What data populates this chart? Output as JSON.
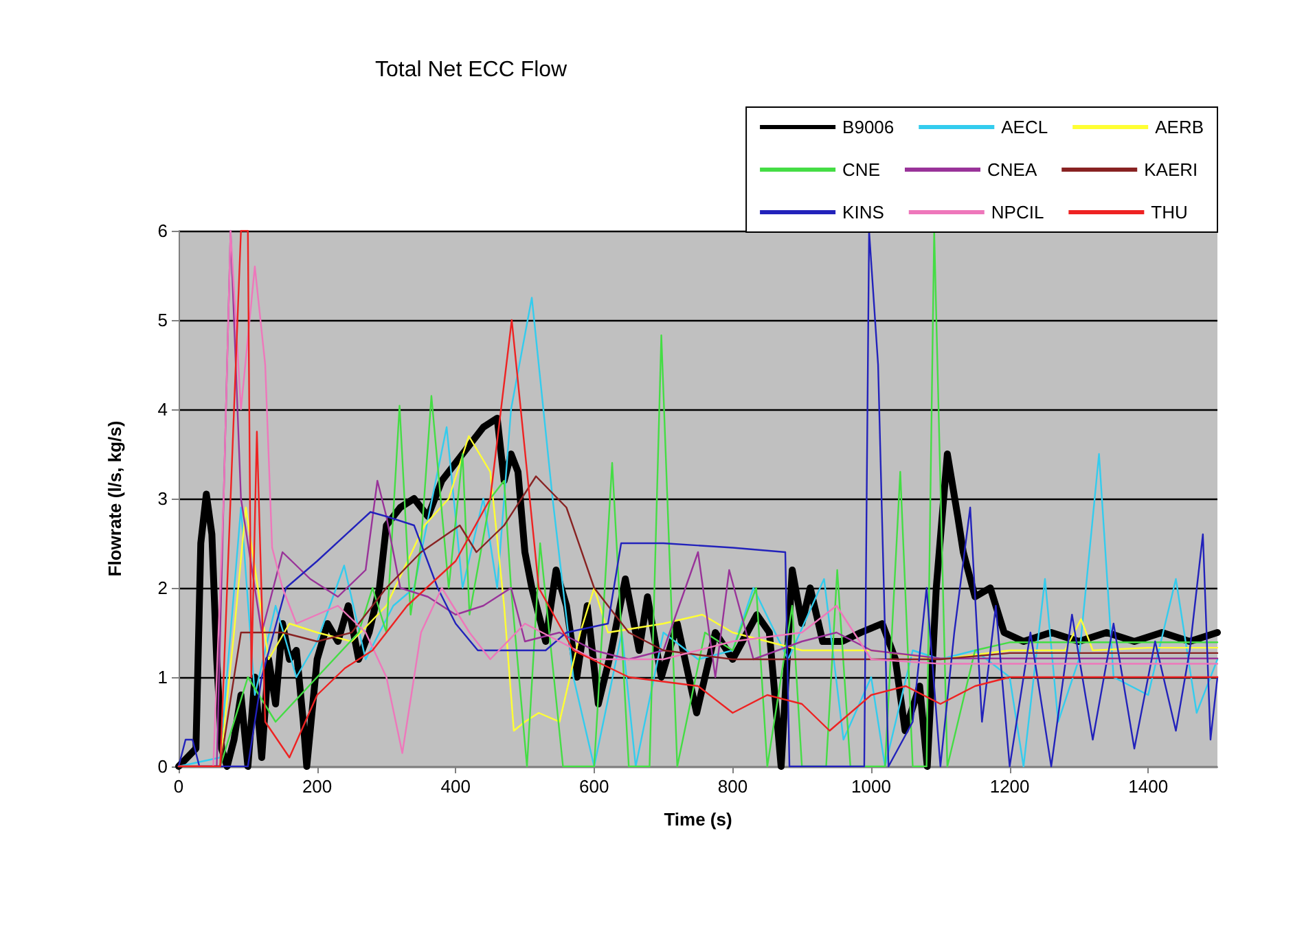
{
  "chart_data": {
    "type": "line",
    "title": "Total Net ECC Flow",
    "xlabel": "Time (s)",
    "ylabel": "Flowrate (l/s, kg/s)",
    "xlim": [
      0,
      1500
    ],
    "xticks": [
      0,
      200,
      400,
      600,
      800,
      1000,
      1200,
      1400
    ],
    "ylim": [
      0,
      6
    ],
    "yticks": [
      0,
      1,
      2,
      3,
      4,
      5,
      6
    ],
    "grid": "y",
    "legend": "top right",
    "marker": "none",
    "line_style": "solid",
    "series": [
      {
        "name": "B9006",
        "color": "#000000",
        "x": [
          0,
          25,
          32,
          40,
          48,
          55,
          62,
          70,
          80,
          90,
          100,
          110,
          120,
          130,
          140,
          150,
          160,
          170,
          180,
          185,
          200,
          215,
          230,
          245,
          260,
          275,
          290,
          300,
          320,
          340,
          360,
          380,
          400,
          420,
          440,
          460,
          470,
          480,
          490,
          500,
          510,
          530,
          545,
          560,
          575,
          590,
          606,
          625,
          645,
          665,
          677,
          697,
          720,
          748,
          775,
          800,
          814,
          835,
          853,
          870,
          886,
          900,
          912,
          930,
          958,
          985,
          1016,
          1035,
          1049,
          1070,
          1081,
          1094,
          1110,
          1125,
          1133,
          1150,
          1172,
          1192,
          1220,
          1260,
          1300,
          1340,
          1380,
          1420,
          1460,
          1500
        ],
        "values": [
          0,
          0.2,
          2.5,
          3.05,
          2.6,
          1.2,
          0.2,
          0,
          0.3,
          0.8,
          0,
          1.0,
          0.1,
          1.2,
          0.7,
          1.6,
          1.2,
          1.3,
          0.5,
          0,
          1.2,
          1.6,
          1.4,
          1.8,
          1.2,
          1.5,
          2.0,
          2.7,
          2.9,
          3.0,
          2.8,
          3.2,
          3.4,
          3.6,
          3.8,
          3.9,
          3.2,
          3.5,
          3.3,
          2.4,
          2.0,
          1.4,
          2.2,
          1.8,
          1.0,
          1.8,
          0.7,
          1.3,
          2.1,
          1.3,
          1.9,
          1.0,
          1.6,
          0.6,
          1.5,
          1.2,
          1.4,
          1.7,
          1.5,
          0,
          2.2,
          1.6,
          2.0,
          1.4,
          1.4,
          1.5,
          1.6,
          1.2,
          0.4,
          0.9,
          0,
          2.0,
          3.5,
          2.8,
          2.4,
          1.9,
          2.0,
          1.5,
          1.4,
          1.5,
          1.4,
          1.5,
          1.4,
          1.5,
          1.4,
          1.5
        ]
      },
      {
        "name": "AECL",
        "color": "#33ccee",
        "x": [
          0,
          60,
          75,
          90,
          110,
          140,
          170,
          200,
          239,
          270,
          310,
          340,
          387,
          410,
          440,
          460,
          480,
          510,
          540,
          570,
          600,
          640,
          660,
          700,
          750,
          800,
          830,
          880,
          932,
          960,
          1000,
          1020,
          1060,
          1100,
          1150,
          1200,
          1220,
          1251,
          1270,
          1300,
          1329,
          1350,
          1400,
          1440,
          1470,
          1500
        ],
        "values": [
          0,
          0.1,
          1.5,
          2.9,
          0.8,
          1.8,
          1.0,
          1.4,
          2.25,
          1.2,
          1.8,
          2.0,
          3.8,
          2.0,
          3.0,
          2.0,
          4.0,
          5.25,
          3.0,
          1.0,
          0,
          1.5,
          0,
          1.5,
          1.2,
          1.3,
          2.0,
          1.2,
          2.1,
          0.3,
          1.0,
          0,
          1.3,
          1.2,
          1.3,
          1.0,
          0,
          2.1,
          0.5,
          1.2,
          3.5,
          1.0,
          0.8,
          2.1,
          0.6,
          1.2
        ]
      },
      {
        "name": "AERB",
        "color": "#ffff33",
        "x": [
          0,
          60,
          80,
          97,
          130,
          160,
          200,
          250,
          300,
          355,
          390,
          419,
          450,
          470,
          484,
          500,
          520,
          550,
          580,
          600,
          620,
          700,
          756,
          800,
          900,
          1000,
          1100,
          1200,
          1280,
          1303,
          1320,
          1400,
          1500
        ],
        "values": [
          0,
          0,
          1.5,
          2.9,
          1.2,
          1.6,
          1.5,
          1.4,
          1.8,
          2.7,
          3.0,
          3.7,
          3.3,
          1.8,
          0.4,
          0.5,
          0.6,
          0.5,
          1.5,
          2.0,
          1.5,
          1.6,
          1.7,
          1.5,
          1.3,
          1.3,
          1.2,
          1.3,
          1.3,
          1.65,
          1.3,
          1.33,
          1.33
        ]
      },
      {
        "name": "CNE",
        "color": "#44dd44",
        "x": [
          0,
          60,
          100,
          140,
          200,
          260,
          280,
          300,
          319,
          335,
          350,
          365,
          390,
          410,
          420,
          450,
          470,
          480,
          503,
          522,
          555,
          600,
          626,
          650,
          680,
          697,
          720,
          760,
          800,
          834,
          850,
          870,
          886,
          900,
          935,
          951,
          970,
          1020,
          1042,
          1060,
          1080,
          1091,
          1110,
          1150,
          1200,
          1300,
          1400,
          1500
        ],
        "values": [
          0,
          0,
          1.0,
          0.5,
          1.0,
          1.5,
          2.0,
          1.5,
          4.04,
          1.7,
          2.5,
          4.15,
          2.0,
          3.5,
          1.7,
          3.0,
          3.2,
          2.0,
          0,
          2.5,
          0,
          0,
          3.4,
          0,
          0,
          4.83,
          0,
          1.5,
          1.3,
          2.0,
          0,
          1.0,
          1.8,
          0,
          0,
          2.2,
          0,
          0,
          3.3,
          0,
          0,
          6,
          0,
          1.3,
          1.39,
          1.39,
          1.39,
          1.39
        ]
      },
      {
        "name": "CNEA",
        "color": "#993399",
        "x": [
          0,
          55,
          65,
          75,
          90,
          120,
          150,
          190,
          230,
          270,
          287,
          300,
          320,
          360,
          400,
          440,
          480,
          500,
          550,
          600,
          650,
          700,
          750,
          775,
          795,
          830,
          900,
          950,
          1000,
          1100,
          1200,
          1300,
          1400,
          1500
        ],
        "values": [
          0,
          0,
          3.0,
          6,
          3.0,
          1.5,
          2.4,
          2.1,
          1.9,
          2.2,
          3.2,
          2.8,
          2.0,
          1.9,
          1.7,
          1.8,
          2.0,
          1.4,
          1.5,
          1.3,
          1.2,
          1.3,
          2.4,
          1.0,
          2.2,
          1.2,
          1.4,
          1.5,
          1.3,
          1.21,
          1.21,
          1.21,
          1.21,
          1.21
        ]
      },
      {
        "name": "KAERI",
        "color": "#882222",
        "x": [
          0,
          60,
          90,
          150,
          200,
          250,
          300,
          350,
          406,
          430,
          470,
          516,
          560,
          600,
          650,
          700,
          800,
          900,
          1000,
          1100,
          1200,
          1300,
          1400,
          1500
        ],
        "values": [
          0,
          0,
          1.5,
          1.5,
          1.4,
          1.5,
          2.0,
          2.4,
          2.7,
          2.4,
          2.7,
          3.25,
          2.9,
          2.0,
          1.5,
          1.3,
          1.2,
          1.2,
          1.2,
          1.2,
          1.27,
          1.27,
          1.27,
          1.27
        ]
      },
      {
        "name": "KINS",
        "color": "#2222bb",
        "x": [
          0,
          10,
          20,
          30,
          100,
          120,
          155,
          200,
          277,
          300,
          340,
          374,
          400,
          432,
          530,
          560,
          620,
          639,
          700,
          800,
          876,
          882,
          990,
          997,
          1010,
          1025,
          1060,
          1080,
          1100,
          1120,
          1143,
          1160,
          1180,
          1200,
          1230,
          1260,
          1290,
          1320,
          1350,
          1380,
          1410,
          1440,
          1460,
          1479,
          1490,
          1500
        ],
        "values": [
          0,
          0.3,
          0.3,
          0,
          0,
          1.0,
          2.0,
          2.3,
          2.85,
          2.8,
          2.7,
          2.0,
          1.6,
          1.3,
          1.3,
          1.5,
          1.6,
          2.5,
          2.5,
          2.45,
          2.4,
          0,
          0,
          6,
          4.5,
          0,
          0.5,
          2.0,
          0,
          1.5,
          2.9,
          0.5,
          1.8,
          0,
          1.5,
          0,
          1.7,
          0.3,
          1.6,
          0.2,
          1.4,
          0.4,
          1.3,
          2.6,
          0.3,
          1.0
        ]
      },
      {
        "name": "NPCIL",
        "color": "#ee77bb",
        "x": [
          0,
          50,
          65,
          75,
          90,
          110,
          125,
          135,
          150,
          170,
          200,
          230,
          270,
          300,
          323,
          350,
          380,
          420,
          450,
          500,
          600,
          700,
          800,
          900,
          950,
          1000,
          1100,
          1200,
          1300,
          1400,
          1500
        ],
        "values": [
          0,
          0,
          3.0,
          6,
          4.0,
          5.6,
          4.5,
          2.45,
          2.0,
          1.6,
          1.7,
          1.8,
          1.5,
          1.0,
          0.15,
          1.5,
          2.0,
          1.5,
          1.2,
          1.6,
          1.2,
          1.2,
          1.4,
          1.5,
          1.8,
          1.2,
          1.15,
          1.15,
          1.15,
          1.15,
          1.15
        ]
      },
      {
        "name": "THU",
        "color": "#ee2222",
        "x": [
          0,
          60,
          75,
          90,
          100,
          105,
          113,
          125,
          160,
          200,
          240,
          280,
          330,
          400,
          450,
          481,
          520,
          570,
          650,
          750,
          800,
          850,
          900,
          940,
          1000,
          1050,
          1100,
          1150,
          1200,
          1300,
          1400,
          1500
        ],
        "values": [
          0,
          0,
          3.0,
          6,
          6,
          1.0,
          3.75,
          0.5,
          0.1,
          0.8,
          1.1,
          1.3,
          1.8,
          2.3,
          3.0,
          5.0,
          2.0,
          1.3,
          1.0,
          0.9,
          0.6,
          0.8,
          0.7,
          0.4,
          0.8,
          0.9,
          0.7,
          0.9,
          1.0,
          1.0,
          1.0,
          1.0
        ]
      }
    ]
  }
}
